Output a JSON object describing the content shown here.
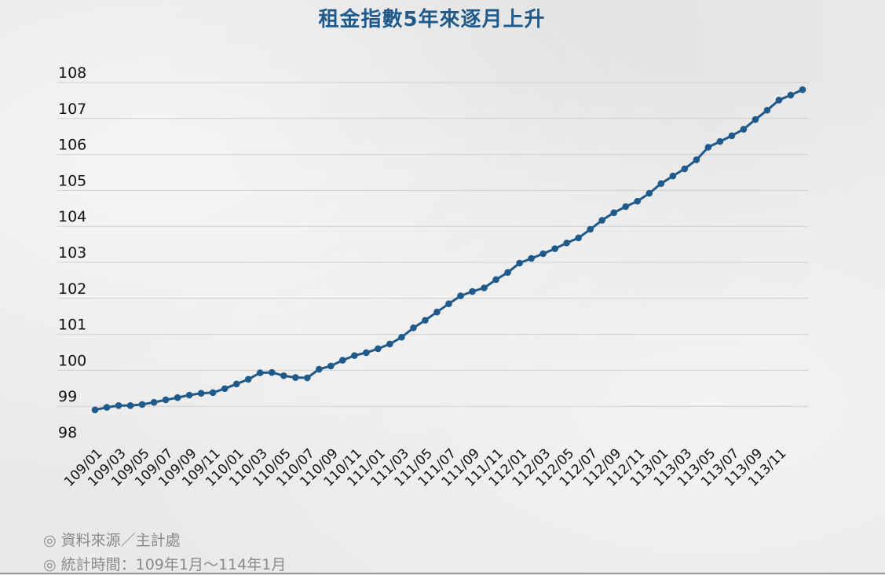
{
  "chart_data": {
    "type": "line",
    "title": "租金指數5年來逐月上升",
    "xlabel": "",
    "ylabel": "",
    "ylim": [
      98,
      108
    ],
    "yticks": [
      "98",
      "99",
      "100",
      "101",
      "102",
      "103",
      "104",
      "105",
      "106",
      "107",
      "108"
    ],
    "grid": true,
    "legend": "none",
    "color": "#1f5a8a",
    "x": [
      "109/01",
      "109/02",
      "109/03",
      "109/04",
      "109/05",
      "109/06",
      "109/07",
      "109/08",
      "109/09",
      "109/10",
      "109/11",
      "109/12",
      "110/01",
      "110/02",
      "110/03",
      "110/04",
      "110/05",
      "110/06",
      "110/07",
      "110/08",
      "110/09",
      "110/10",
      "110/11",
      "110/12",
      "111/01",
      "111/02",
      "111/03",
      "111/04",
      "111/05",
      "111/06",
      "111/07",
      "111/08",
      "111/09",
      "111/10",
      "111/11",
      "111/12",
      "112/01",
      "112/02",
      "112/03",
      "112/04",
      "112/05",
      "112/06",
      "112/07",
      "112/08",
      "112/09",
      "112/10",
      "112/11",
      "112/12",
      "113/01",
      "113/02",
      "113/03",
      "113/04",
      "113/05",
      "113/06",
      "113/07",
      "113/08",
      "113/09",
      "113/10",
      "113/11",
      "113/12",
      "114/01"
    ],
    "xtick_labels": [
      "109/01",
      "",
      "109/03",
      "",
      "109/05",
      "",
      "109/07",
      "",
      "109/09",
      "",
      "109/11",
      "",
      "110/01",
      "",
      "110/03",
      "",
      "110/05",
      "",
      "110/07",
      "",
      "110/09",
      "",
      "110/11",
      "",
      "111/01",
      "",
      "111/03",
      "",
      "111/05",
      "",
      "111/07",
      "",
      "111/09",
      "",
      "111/11",
      "",
      "112/01",
      "",
      "112/03",
      "",
      "112/05",
      "",
      "112/07",
      "",
      "112/09",
      "",
      "112/11",
      "",
      "113/01",
      "",
      "113/03",
      "",
      "113/05",
      "",
      "113/07",
      "",
      "113/09",
      "",
      "113/11",
      "",
      ""
    ],
    "values": [
      98.9,
      98.97,
      99.02,
      99.02,
      99.05,
      99.11,
      99.18,
      99.24,
      99.31,
      99.36,
      99.38,
      99.49,
      99.62,
      99.75,
      99.93,
      99.94,
      99.85,
      99.8,
      99.79,
      100.03,
      100.12,
      100.28,
      100.41,
      100.49,
      100.6,
      100.73,
      100.92,
      101.18,
      101.39,
      101.62,
      101.85,
      102.07,
      102.19,
      102.29,
      102.52,
      102.72,
      102.98,
      103.11,
      103.24,
      103.38,
      103.54,
      103.68,
      103.92,
      104.17,
      104.38,
      104.55,
      104.7,
      104.92,
      105.19,
      105.4,
      105.6,
      105.85,
      106.2,
      106.36,
      106.52,
      106.7,
      106.97,
      107.23,
      107.51,
      107.65,
      107.8
    ]
  },
  "footnotes": {
    "source": "◎ 資料來源／主計處",
    "period": "◎ 統計時間：109年1月～114年1月"
  }
}
